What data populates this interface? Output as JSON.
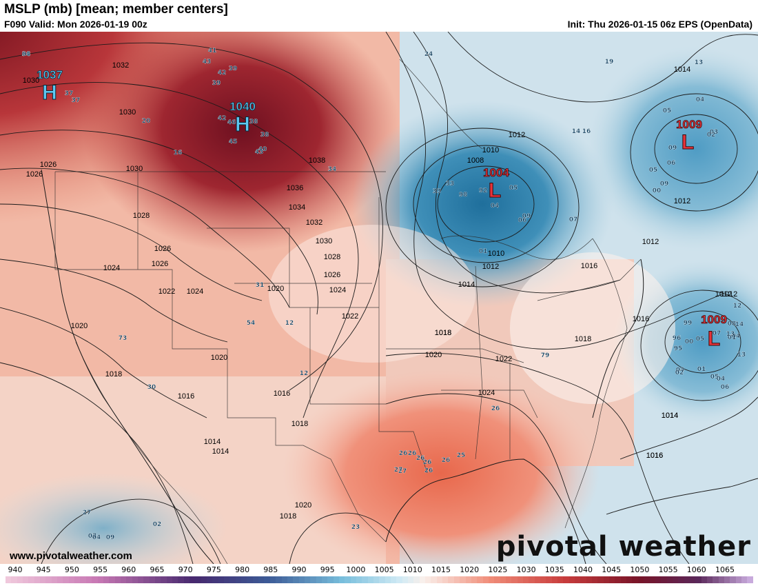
{
  "header": {
    "title": "MSLP (mb) [mean; member centers]",
    "valid": "F090 Valid: Mon 2026-01-19 00z",
    "init": "Init: Thu 2026-01-15 06z EPS (OpenData)"
  },
  "branding": {
    "watermark": "pivotal weather",
    "site": "www.pivotalweather.com"
  },
  "centers": [
    {
      "type": "H",
      "value": "1037",
      "color": "#5ec8f2"
    },
    {
      "type": "H",
      "value": "1040",
      "color": "#5ec8f2"
    },
    {
      "type": "L",
      "value": "1004",
      "color": "#e8333a"
    },
    {
      "type": "L",
      "value": "1009",
      "color": "#e8333a"
    },
    {
      "type": "L",
      "value": "1009",
      "color": "#e8333a"
    }
  ],
  "isobar_labels": [
    "1032",
    "1030",
    "1030",
    "1026",
    "1026",
    "1030",
    "1028",
    "1026",
    "1024",
    "1026",
    "1022",
    "1024",
    "1020",
    "1020",
    "1018",
    "1016",
    "1014",
    "1014",
    "1018",
    "1020",
    "1018",
    "1016",
    "1020",
    "1022",
    "1024",
    "1026",
    "1028",
    "1030",
    "1032",
    "1034",
    "1036",
    "1038",
    "1012",
    "1010",
    "1008",
    "1010",
    "1012",
    "1014",
    "1016",
    "1018",
    "1020",
    "1022",
    "1024",
    "1018",
    "1016",
    "1014",
    "1012",
    "1012",
    "1014",
    "1016",
    "1012",
    "1012",
    "1014",
    "1016",
    "1018"
  ],
  "member_labels": [
    "38",
    "41",
    "43",
    "42",
    "39",
    "39",
    "20",
    "16",
    "37",
    "37",
    "42",
    "46",
    "38",
    "45",
    "38",
    "43",
    "40",
    "34",
    "24",
    "19",
    "14",
    "16",
    "13",
    "05",
    "04",
    "03",
    "02",
    "09",
    "06",
    "05",
    "09",
    "00",
    "33",
    "33",
    "98",
    "92",
    "04",
    "05",
    "09",
    "06",
    "07",
    "01",
    "73",
    "30",
    "54",
    "12",
    "12",
    "31",
    "79",
    "26",
    "26",
    "26",
    "26",
    "26",
    "26",
    "27",
    "27",
    "26",
    "25",
    "23",
    "27",
    "07",
    "04",
    "09",
    "02",
    "99",
    "00",
    "05",
    "07",
    "04",
    "01",
    "96",
    "95",
    "04",
    "02",
    "01",
    "05",
    "04",
    "06",
    "14",
    "13",
    "12",
    "08",
    "13",
    "04"
  ],
  "colorbar": {
    "ticks": [
      "940",
      "945",
      "950",
      "955",
      "960",
      "965",
      "970",
      "975",
      "980",
      "985",
      "990",
      "995",
      "1000",
      "1005",
      "1010",
      "1015",
      "1020",
      "1025",
      "1030",
      "1035",
      "1040",
      "1045",
      "1050",
      "1055",
      "1060",
      "1065"
    ]
  }
}
